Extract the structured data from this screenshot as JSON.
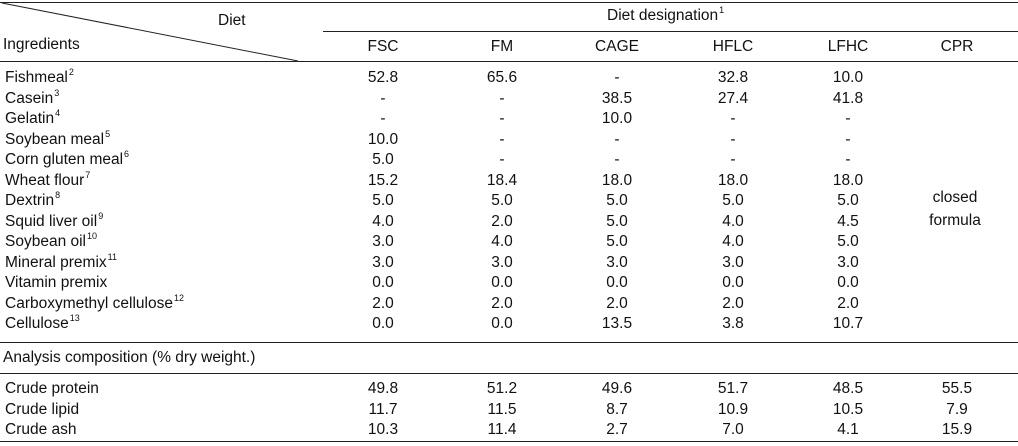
{
  "header": {
    "diet_label": "Diet",
    "ingredients_label": "Ingredients",
    "designation_label": "Diet designation",
    "designation_sup": "1",
    "columns": [
      "FSC",
      "FM",
      "CAGE",
      "HFLC",
      "LFHC",
      "CPR"
    ]
  },
  "ingredients": [
    {
      "name": "Fishmeal",
      "sup": "2",
      "values": [
        "52.8",
        "65.6",
        "-",
        "32.8",
        "10.0"
      ]
    },
    {
      "name": "Casein",
      "sup": "3",
      "values": [
        "-",
        "-",
        "38.5",
        "27.4",
        "41.8"
      ]
    },
    {
      "name": "Gelatin",
      "sup": "4",
      "values": [
        "-",
        "-",
        "10.0",
        "-",
        "-"
      ]
    },
    {
      "name": "Soybean meal",
      "sup": "5",
      "values": [
        "10.0",
        "-",
        "-",
        "-",
        "-"
      ]
    },
    {
      "name": "Corn gluten meal",
      "sup": "6",
      "values": [
        "5.0",
        "-",
        "-",
        "-",
        "-"
      ]
    },
    {
      "name": "Wheat flour",
      "sup": "7",
      "values": [
        "15.2",
        "18.4",
        "18.0",
        "18.0",
        "18.0"
      ]
    },
    {
      "name": "Dextrin",
      "sup": "8",
      "values": [
        "5.0",
        "5.0",
        "5.0",
        "5.0",
        "5.0"
      ]
    },
    {
      "name": "Squid liver oil",
      "sup": "9",
      "values": [
        "4.0",
        "2.0",
        "5.0",
        "4.0",
        "4.5"
      ]
    },
    {
      "name": "Soybean oil",
      "sup": "10",
      "values": [
        "3.0",
        "4.0",
        "5.0",
        "4.0",
        "5.0"
      ]
    },
    {
      "name": "Mineral premix",
      "sup": "11",
      "values": [
        "3.0",
        "3.0",
        "3.0",
        "3.0",
        "3.0"
      ]
    },
    {
      "name": "Vitamin premix",
      "sup": "",
      "values": [
        "0.0",
        "0.0",
        "0.0",
        "0.0",
        "0.0"
      ]
    },
    {
      "name": "Carboxymethyl cellulose",
      "sup": "12",
      "values": [
        "2.0",
        "2.0",
        "2.0",
        "2.0",
        "2.0"
      ]
    },
    {
      "name": "Cellulose",
      "sup": "13",
      "values": [
        "0.0",
        "0.0",
        "13.5",
        "3.8",
        "10.7"
      ]
    }
  ],
  "cpr_note_line1": "closed",
  "cpr_note_line2": "formula",
  "analysis_label": "Analysis composition (% dry weight.)",
  "analysis": [
    {
      "name": "Crude protein",
      "values": [
        "49.8",
        "51.2",
        "49.6",
        "51.7",
        "48.5",
        "55.5"
      ]
    },
    {
      "name": "Crude lipid",
      "values": [
        "11.7",
        "11.5",
        "8.7",
        "10.9",
        "10.5",
        "7.9"
      ]
    },
    {
      "name": "Crude ash",
      "values": [
        "10.3",
        "11.4",
        "2.7",
        "7.0",
        "4.1",
        "15.9"
      ]
    }
  ]
}
